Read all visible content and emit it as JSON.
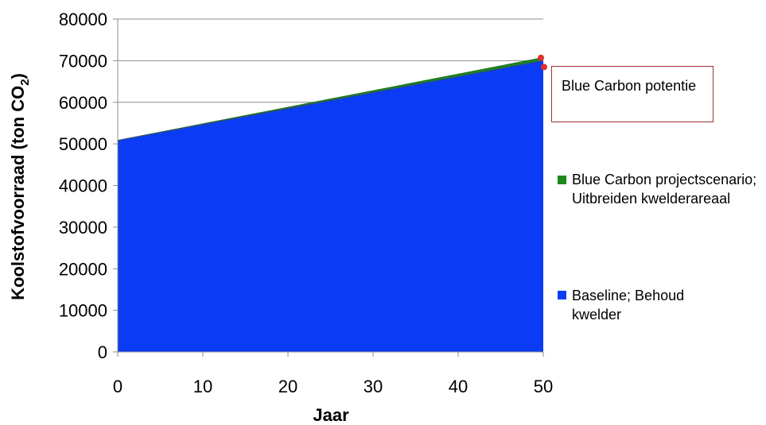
{
  "chart_data": {
    "type": "area",
    "xlabel": "Jaar",
    "ylabel_main": "Koolstofvoorraad (ton CO",
    "ylabel_sub": "2",
    "ylabel_end": ")",
    "xlim": [
      0,
      50
    ],
    "ylim": [
      0,
      80000
    ],
    "x_ticks": [
      "0",
      "10",
      "20",
      "30",
      "40",
      "50"
    ],
    "y_ticks": [
      "0",
      "10000",
      "20000",
      "30000",
      "40000",
      "50000",
      "60000",
      "70000",
      "80000"
    ],
    "grid": true,
    "legend_position": "right",
    "series": [
      {
        "name": "Baseline; Behoud kwelder",
        "color": "#0a3cf5",
        "x": [
          0,
          50
        ],
        "values": [
          50800,
          70000
        ]
      },
      {
        "name": "Blue Carbon projectscenario; Uitbreiden kwelderareaal",
        "color": "#1a8a1a",
        "x": [
          0,
          50
        ],
        "values": [
          50800,
          70700
        ]
      }
    ],
    "annotation": {
      "text": "Blue Carbon potentie",
      "marker_color": "#e03030"
    }
  },
  "legend": {
    "items": [
      {
        "label": "Blue Carbon projectscenario; Uitbreiden kwelderareaal",
        "color": "#1a8a1a"
      },
      {
        "label": "Baseline; Behoud kwelder",
        "color": "#0a3cf5"
      }
    ]
  }
}
